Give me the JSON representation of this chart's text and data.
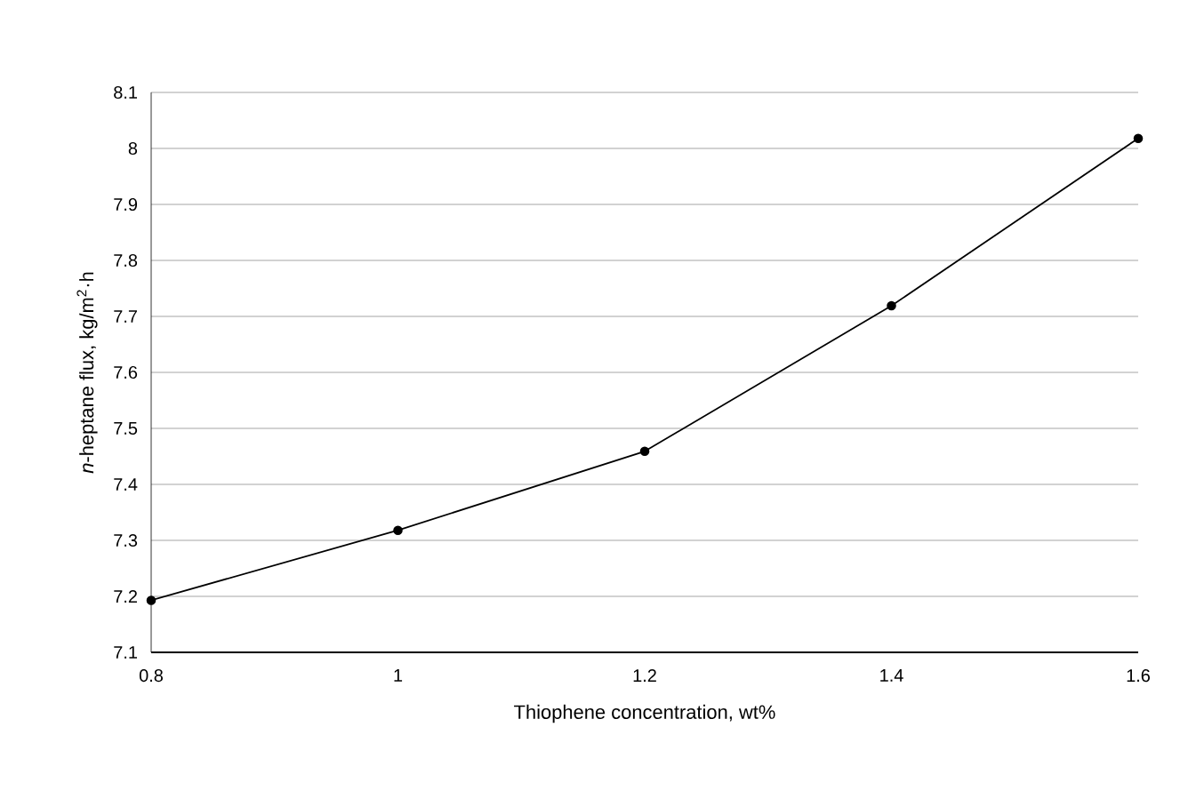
{
  "chart_data": {
    "type": "line",
    "xlabel": "Thiophene concentration, wt%",
    "ylabel": "*n*-heptane flux, kg/m$^{2}$·h",
    "x": [
      0.8,
      1.0,
      1.2,
      1.4,
      1.6
    ],
    "series": [
      {
        "color": "#000000",
        "values": [
          7.193,
          7.318,
          7.459,
          7.719,
          8.018
        ]
      }
    ],
    "xlim": [
      0.8,
      1.6
    ],
    "xticks": [
      0.8,
      1,
      1.2,
      1.4,
      1.6
    ],
    "ylim": [
      7.1,
      8.1
    ],
    "yticks": [
      7.1,
      7.2,
      7.3,
      7.4,
      7.5,
      7.6,
      7.7,
      7.8,
      7.9,
      8,
      8.1
    ],
    "grid": "y",
    "marker": "circle",
    "line_style": "solid"
  }
}
